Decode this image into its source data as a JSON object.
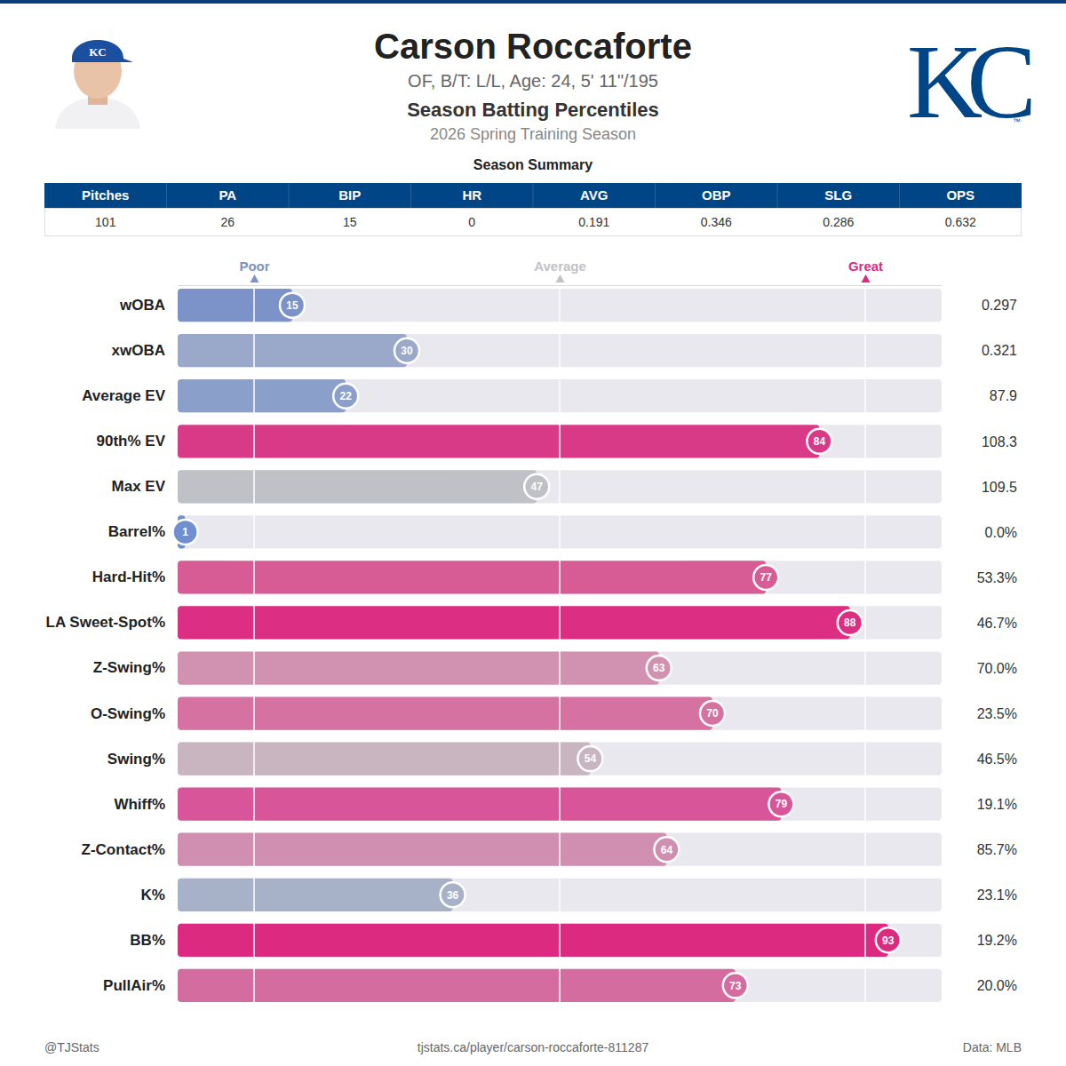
{
  "header": {
    "name": "Carson Roccaforte",
    "info": "OF, B/T: L/L, Age: 24, 5' 11\"/195",
    "title": "Season Batting Percentiles",
    "subtitle": "2026 Spring Training Season",
    "logo": "KC",
    "logo_mark": "™"
  },
  "summary": {
    "title": "Season Summary",
    "columns": [
      "Pitches",
      "PA",
      "BIP",
      "HR",
      "AVG",
      "OBP",
      "SLG",
      "OPS"
    ],
    "row": [
      "101",
      "26",
      "15",
      "0",
      "0.191",
      "0.346",
      "0.286",
      "0.632"
    ]
  },
  "chart_data": {
    "type": "bar",
    "orientation": "horizontal",
    "categories": [
      "wOBA",
      "xwOBA",
      "Average EV",
      "90th% EV",
      "Max EV",
      "Barrel%",
      "Hard-Hit%",
      "LA Sweet-Spot%",
      "Z-Swing%",
      "O-Swing%",
      "Swing%",
      "Whiff%",
      "Z-Contact%",
      "K%",
      "BB%",
      "PullAir%"
    ],
    "values": [
      15,
      30,
      22,
      84,
      47,
      1,
      77,
      88,
      63,
      70,
      54,
      79,
      64,
      36,
      93,
      73
    ],
    "colors": [
      "#7b93c8",
      "#9aa9c9",
      "#8a9fca",
      "#d93a87",
      "#c0c1c6",
      "#6f8fd0",
      "#d75c96",
      "#dc2f83",
      "#d192b1",
      "#d572a2",
      "#c9b5c0",
      "#d9559a",
      "#d08fb0",
      "#a7b1c7",
      "#dc2a80",
      "#d56c9f"
    ],
    "metric_values": [
      "0.297",
      "0.321",
      "87.9",
      "108.3",
      "109.5",
      "0.0%",
      "53.3%",
      "46.7%",
      "70.0%",
      "23.5%",
      "46.5%",
      "19.1%",
      "85.7%",
      "23.1%",
      "19.2%",
      "20.0%"
    ],
    "xlim": [
      0,
      100
    ],
    "xticks": [
      {
        "value": 10,
        "label": "Poor"
      },
      {
        "value": 50,
        "label": "Average"
      },
      {
        "value": 90,
        "label": "Great"
      }
    ],
    "grid": true,
    "data_labels": true
  },
  "footer": {
    "left": "@TJStats",
    "center": "tjstats.ca/player/carson-roccaforte-811287",
    "right": "Data: MLB"
  }
}
